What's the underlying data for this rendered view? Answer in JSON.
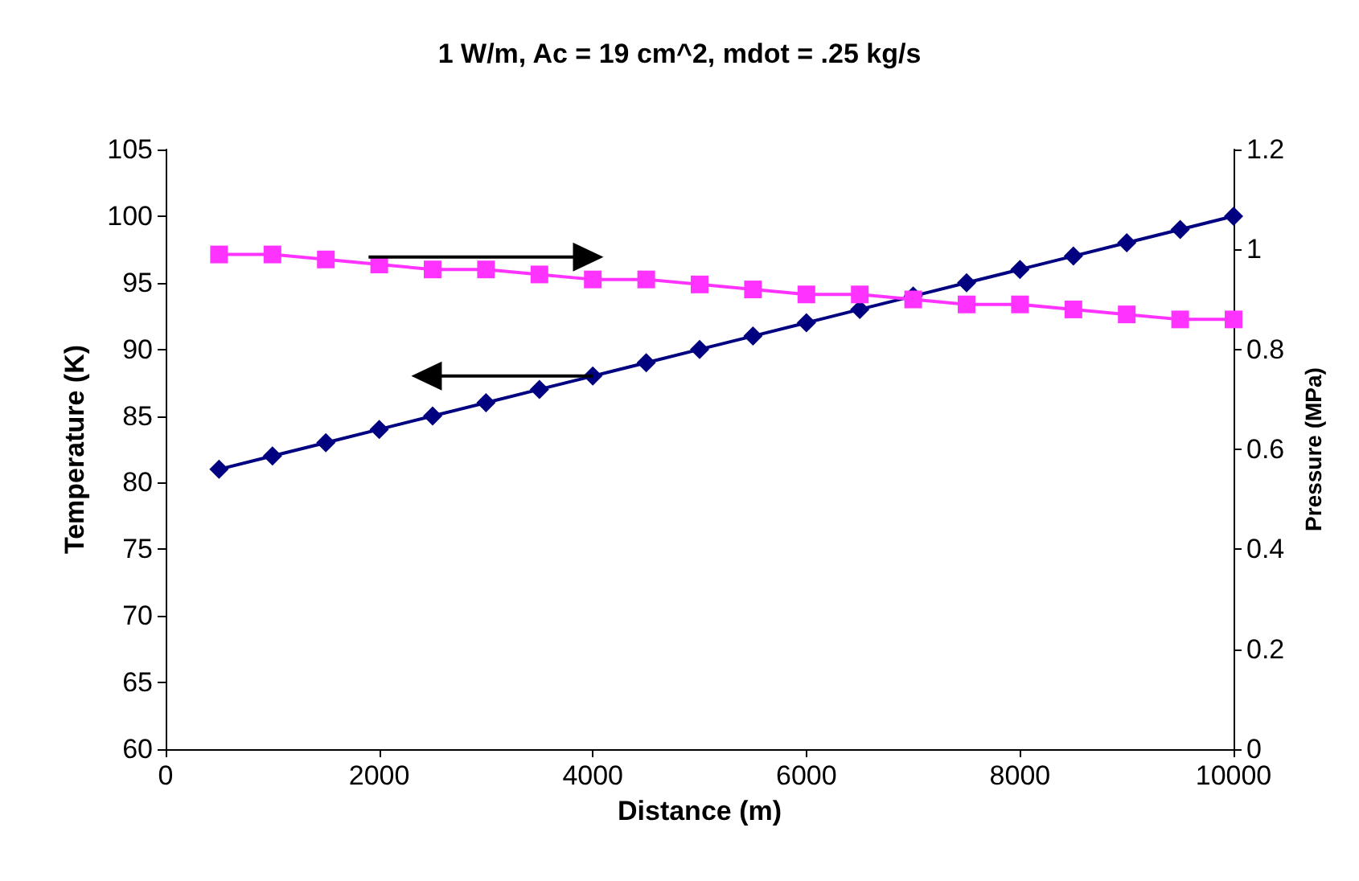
{
  "chart_data": {
    "type": "line",
    "title": "1 W/m, Ac = 19 cm^2, mdot = .25 kg/s",
    "xlabel": "Distance (m)",
    "ylabel": "Temperature (K)",
    "y2label": "Pressure (MPa)",
    "xlim": [
      0,
      10000
    ],
    "xticks": [
      0,
      2000,
      4000,
      6000,
      8000,
      10000
    ],
    "ylim": [
      60,
      105
    ],
    "yticks": [
      60,
      65,
      70,
      75,
      80,
      85,
      90,
      95,
      100,
      105
    ],
    "y2lim": [
      0,
      1.2
    ],
    "y2ticks": [
      0,
      0.2,
      0.4,
      0.6,
      0.8,
      1,
      1.2
    ],
    "series": [
      {
        "color": "#000080",
        "marker": "diamond",
        "x": [
          500,
          1000,
          1500,
          2000,
          2500,
          3000,
          3500,
          4000,
          4500,
          5000,
          5500,
          6000,
          6500,
          7000,
          7500,
          8000,
          8500,
          9000,
          9500,
          10000
        ],
        "values": [
          81,
          82,
          83,
          84,
          85,
          86,
          87,
          88,
          89,
          90,
          91,
          92,
          93,
          94,
          95,
          96,
          97,
          98,
          99,
          100
        ]
      },
      {
        "color": "#ff33ff",
        "marker": "square",
        "axis": "y2",
        "x": [
          500,
          1000,
          1500,
          2000,
          2500,
          3000,
          3500,
          4000,
          4500,
          5000,
          5500,
          6000,
          6500,
          7000,
          7500,
          8000,
          8500,
          9000,
          9500,
          10000
        ],
        "values": [
          0.99,
          0.99,
          0.98,
          0.97,
          0.96,
          0.96,
          0.95,
          0.94,
          0.94,
          0.93,
          0.92,
          0.91,
          0.91,
          0.9,
          0.89,
          0.89,
          0.88,
          0.87,
          0.86,
          0.86
        ]
      }
    ]
  }
}
